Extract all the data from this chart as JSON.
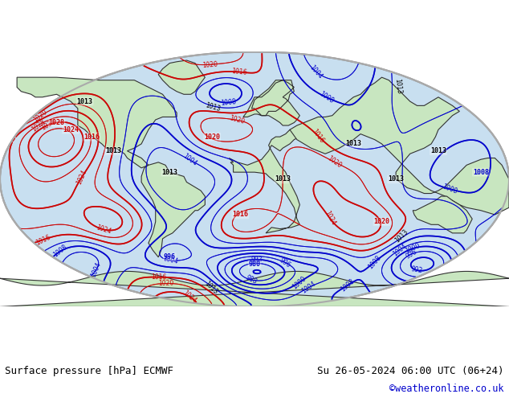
{
  "title_left": "Surface pressure [hPa] ECMWF",
  "title_right": "Su 26-05-2024 06:00 UTC (06+24)",
  "credit": "©weatheronline.co.uk",
  "bg_color": "#ffffff",
  "map_bg": "#d0e8f8",
  "land_color": "#c8e6c0",
  "contour_interval": 4,
  "pressure_min": 960,
  "pressure_max": 1048,
  "font_family": "monospace",
  "text_color": "#000000",
  "credit_color": "#0000cc",
  "left_text_color": "#000000",
  "right_text_color": "#000000"
}
